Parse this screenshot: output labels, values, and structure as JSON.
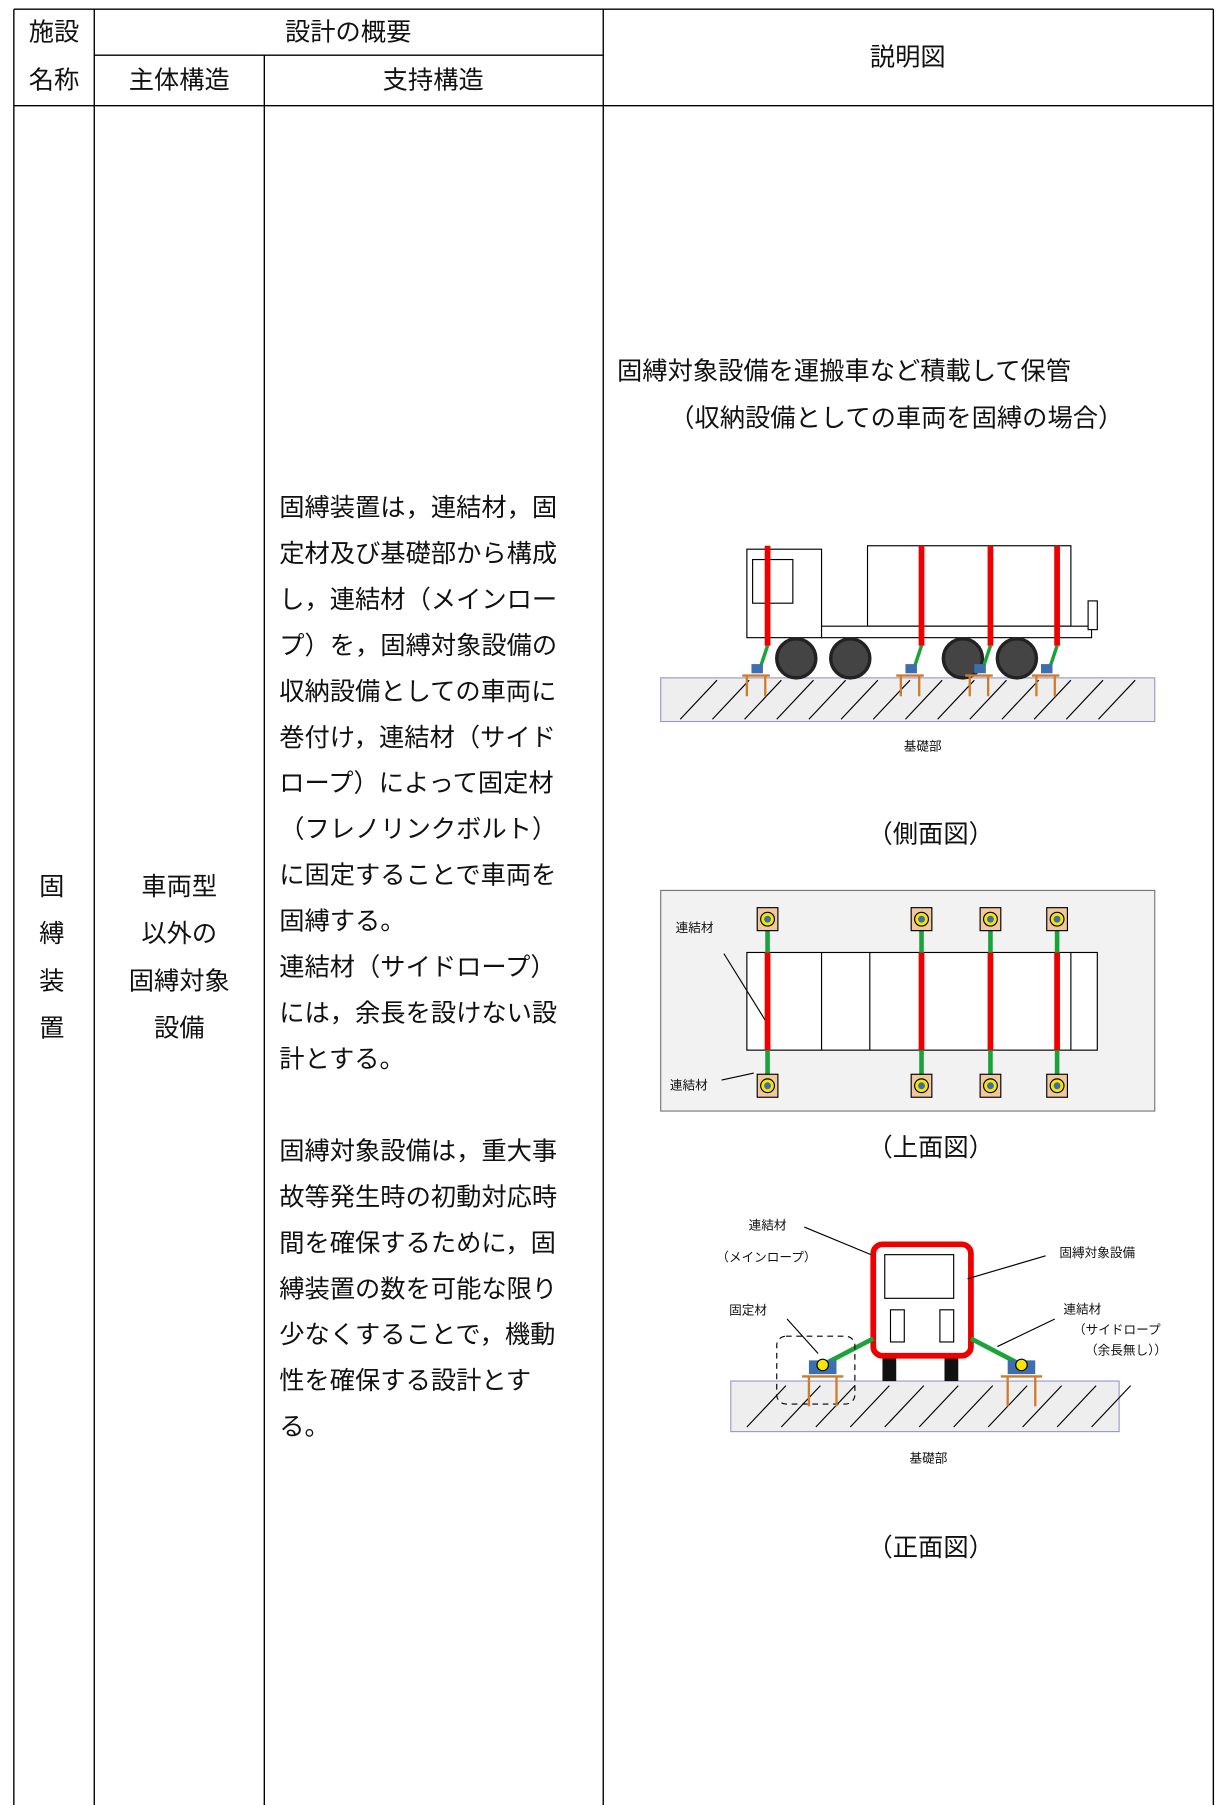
{
  "header": {
    "facility_name": [
      "施設",
      "名称"
    ],
    "design_overview": "設計の概要",
    "main_structure": "主体構造",
    "support_structure": "支持構造",
    "figure": "説明図"
  },
  "row": {
    "facility": [
      "固",
      "縛",
      "装",
      "置"
    ],
    "main_structure": [
      "車両型",
      "以外の",
      "固縛対象",
      "設備"
    ],
    "support_structure": [
      [
        "固縛装置は，連結材，固",
        "定材及び基礎部から構成",
        "し，連結材（メインロー",
        "プ）を，固縛対象設備の",
        "収納設備としての車両に",
        "巻付け，連結材（サイド",
        "ロープ）によって固定材",
        "（フレノリンクボルト）",
        "に固定することで車両を",
        "固縛する。",
        "連結材（サイドロープ）",
        "には，余長を設けない設",
        "計とする。"
      ],
      [
        "固縛対象設備は，重大事",
        "故等発生時の初動対応時",
        "間を確保するために，固",
        "縛装置の数を可能な限り",
        "少なくすることで，機動",
        "性を確保する設計とす",
        "る。"
      ]
    ],
    "figure": {
      "caption": [
        "固縛対象設備を運搬車など積載して保管",
        "（収納設備としての車両を固縛の場合）"
      ],
      "side_view": {
        "foundation_label": "基礎部",
        "title": "（側面図）"
      },
      "top_view": {
        "labels": [
          "連結材",
          "連結材"
        ],
        "title": "（上面図）"
      },
      "front_view": {
        "main_rope_label": [
          "連結材",
          "（メインロープ）"
        ],
        "equipment_label": "固縛対象設備",
        "fixing_label": "固定材",
        "side_rope_label": [
          "連結材",
          "（サイドロープ",
          "（余長無し））"
        ],
        "foundation_label": "基礎部",
        "title": "（正面図）"
      }
    }
  }
}
